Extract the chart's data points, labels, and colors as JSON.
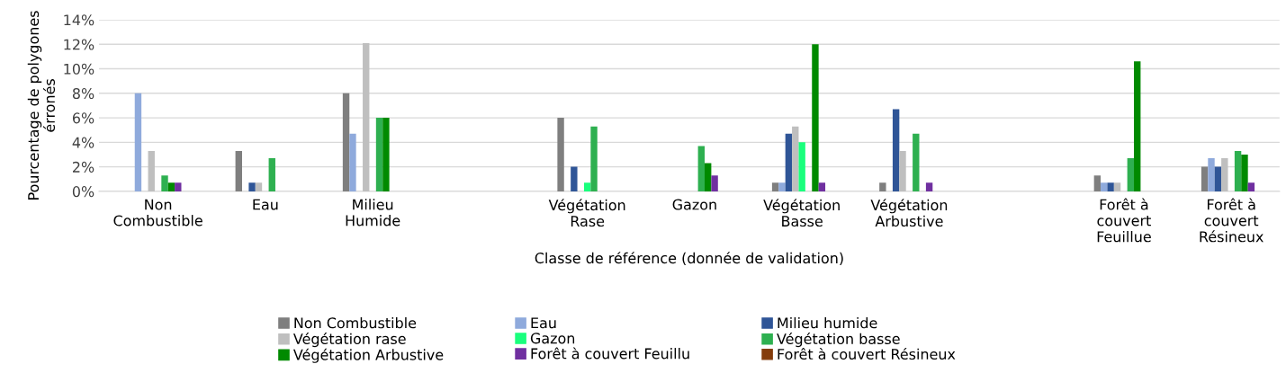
{
  "chart_data": {
    "type": "bar",
    "xlabel": "Classe de référence (donnée de validation)",
    "ylabel": "Pourcentage de polygones\nérronés",
    "categories": [
      "Non\nCombustible",
      "Eau",
      "Milieu\nHumide",
      null,
      "Végétation\nRase",
      "Gazon",
      "Végétation\nBasse",
      "Végétation\nArbustive",
      null,
      "Forêt à\ncouvert\nFeuillue",
      "Forêt à\ncouvert\nRésineux"
    ],
    "series": [
      {
        "name": "Non Combustible",
        "color": "#7f7f7f",
        "values": [
          0,
          3.3,
          8,
          null,
          6,
          0,
          0.7,
          0.7,
          null,
          1.3,
          2
        ]
      },
      {
        "name": "Eau",
        "color": "#8faadc",
        "values": [
          8,
          0,
          4.7,
          null,
          0,
          0,
          0.7,
          0,
          null,
          0.7,
          2.7
        ]
      },
      {
        "name": "Milieu humide",
        "color": "#2f5597",
        "values": [
          0,
          0.7,
          0,
          null,
          2,
          0,
          4.7,
          6.7,
          null,
          0.7,
          2
        ]
      },
      {
        "name": "Végétation rase",
        "color": "#bfbfbf",
        "values": [
          3.3,
          0.7,
          12.1,
          null,
          0,
          0,
          5.3,
          3.3,
          null,
          0.7,
          2.7
        ]
      },
      {
        "name": "Gazon",
        "color": "#1aff7d",
        "values": [
          0,
          0,
          0,
          null,
          0.7,
          0,
          4,
          0,
          null,
          0,
          0
        ]
      },
      {
        "name": "Végétation basse",
        "color": "#2eb050",
        "values": [
          1.3,
          2.7,
          6,
          null,
          5.3,
          3.7,
          0,
          4.7,
          null,
          2.7,
          3.3
        ]
      },
      {
        "name": "Végétation Arbustive",
        "color": "#008a00",
        "values": [
          0.7,
          0,
          6,
          null,
          0,
          2.3,
          12,
          0,
          null,
          10.6,
          3
        ]
      },
      {
        "name": "Forêt à couvert Feuillu",
        "color": "#7030a0",
        "values": [
          0.7,
          0,
          0,
          null,
          0,
          1.3,
          0.7,
          0.7,
          null,
          0,
          0.7
        ]
      },
      {
        "name": "Forêt à couvert Résineux",
        "color": "#843c0c",
        "values": [
          0,
          0,
          0,
          null,
          0,
          0,
          0,
          0,
          null,
          0,
          0
        ]
      }
    ],
    "ylim": [
      0,
      14
    ],
    "yticks": [
      {
        "value": 0,
        "label": "0%"
      },
      {
        "value": 2,
        "label": "2%"
      },
      {
        "value": 4,
        "label": "4%"
      },
      {
        "value": 6,
        "label": "6%"
      },
      {
        "value": 8,
        "label": "8%"
      },
      {
        "value": 10,
        "label": "10%"
      },
      {
        "value": 12,
        "label": "12%"
      },
      {
        "value": 14,
        "label": "14%"
      }
    ],
    "grid": "y",
    "legend": "bottom"
  }
}
